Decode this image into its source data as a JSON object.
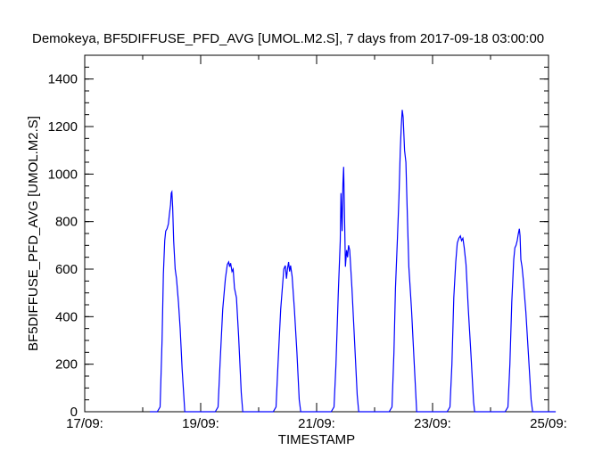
{
  "chart_data": {
    "type": "line",
    "title": "Demokeya, BF5DIFFUSE_PFD_AVG [UMOL.M2.S], 7 days from  2017-09-18 03:00:00",
    "xlabel": "TIMESTAMP",
    "ylabel": "BF5DIFFUSE_PFD_AVG [UMOL.M2.S]",
    "xlim": [
      "2017-09-17",
      "2017-09-25"
    ],
    "ylim": [
      0,
      1500
    ],
    "x_ticks": [
      {
        "date": "2017-09-17",
        "label": "17/09:"
      },
      {
        "date": "2017-09-19",
        "label": "19/09:"
      },
      {
        "date": "2017-09-21",
        "label": "21/09:"
      },
      {
        "date": "2017-09-23",
        "label": "23/09:"
      },
      {
        "date": "2017-09-25",
        "label": "25/09:"
      }
    ],
    "y_ticks": [
      {
        "value": 0,
        "label": "0"
      },
      {
        "value": 200,
        "label": "200"
      },
      {
        "value": 400,
        "label": "400"
      },
      {
        "value": 600,
        "label": "600"
      },
      {
        "value": 800,
        "label": "800"
      },
      {
        "value": 1000,
        "label": "1000"
      },
      {
        "value": 1200,
        "label": "1200"
      },
      {
        "value": 1400,
        "label": "1400"
      }
    ],
    "grid": false,
    "line_color": "#0000ff",
    "series": [
      {
        "points": [
          [
            "2017-09-18 03:00",
            0
          ],
          [
            "2017-09-18 06:00",
            0
          ],
          [
            "2017-09-18 07:12",
            20
          ],
          [
            "2017-09-18 08:00",
            300
          ],
          [
            "2017-09-18 08:34",
            580
          ],
          [
            "2017-09-18 09:07",
            720
          ],
          [
            "2017-09-18 09:31",
            760
          ],
          [
            "2017-09-18 10:05",
            770
          ],
          [
            "2017-09-18 10:38",
            790
          ],
          [
            "2017-09-18 11:02",
            830
          ],
          [
            "2017-09-18 11:31",
            870
          ],
          [
            "2017-09-18 11:50",
            920
          ],
          [
            "2017-09-18 12:05",
            925
          ],
          [
            "2017-09-18 12:24",
            860
          ],
          [
            "2017-09-18 12:48",
            720
          ],
          [
            "2017-09-18 13:26",
            600
          ],
          [
            "2017-09-18 14:00",
            560
          ],
          [
            "2017-09-18 14:48",
            460
          ],
          [
            "2017-09-18 15:31",
            350
          ],
          [
            "2017-09-18 16:19",
            180
          ],
          [
            "2017-09-18 17:26",
            0
          ],
          [
            "2017-09-19 06:00",
            0
          ],
          [
            "2017-09-19 07:12",
            20
          ],
          [
            "2017-09-19 08:00",
            200
          ],
          [
            "2017-09-19 09:07",
            430
          ],
          [
            "2017-09-19 10:14",
            560
          ],
          [
            "2017-09-19 11:02",
            620
          ],
          [
            "2017-09-19 11:36",
            630
          ],
          [
            "2017-09-19 12:00",
            610
          ],
          [
            "2017-09-19 12:24",
            625
          ],
          [
            "2017-09-19 12:58",
            590
          ],
          [
            "2017-09-19 13:26",
            600
          ],
          [
            "2017-09-19 14:00",
            520
          ],
          [
            "2017-09-19 14:48",
            480
          ],
          [
            "2017-09-19 15:41",
            320
          ],
          [
            "2017-09-19 16:48",
            80
          ],
          [
            "2017-09-19 17:26",
            0
          ],
          [
            "2017-09-20 06:00",
            0
          ],
          [
            "2017-09-20 07:12",
            20
          ],
          [
            "2017-09-20 08:00",
            200
          ],
          [
            "2017-09-20 09:07",
            430
          ],
          [
            "2017-09-20 10:24",
            600
          ],
          [
            "2017-09-20 11:02",
            615
          ],
          [
            "2017-09-20 11:31",
            560
          ],
          [
            "2017-09-20 11:55",
            600
          ],
          [
            "2017-09-20 12:24",
            630
          ],
          [
            "2017-09-20 12:48",
            590
          ],
          [
            "2017-09-20 13:12",
            615
          ],
          [
            "2017-09-20 13:50",
            570
          ],
          [
            "2017-09-20 14:48",
            430
          ],
          [
            "2017-09-20 15:50",
            250
          ],
          [
            "2017-09-20 16:48",
            50
          ],
          [
            "2017-09-20 17:26",
            0
          ],
          [
            "2017-09-21 06:00",
            0
          ],
          [
            "2017-09-21 07:12",
            20
          ],
          [
            "2017-09-21 08:00",
            200
          ],
          [
            "2017-09-21 08:58",
            500
          ],
          [
            "2017-09-21 09:46",
            720
          ],
          [
            "2017-09-21 10:05",
            920
          ],
          [
            "2017-09-21 10:34",
            760
          ],
          [
            "2017-09-21 10:53",
            960
          ],
          [
            "2017-09-21 11:12",
            1030
          ],
          [
            "2017-09-21 11:36",
            800
          ],
          [
            "2017-09-21 11:55",
            610
          ],
          [
            "2017-09-21 12:24",
            680
          ],
          [
            "2017-09-21 12:48",
            650
          ],
          [
            "2017-09-21 13:12",
            700
          ],
          [
            "2017-09-21 13:41",
            680
          ],
          [
            "2017-09-21 14:38",
            520
          ],
          [
            "2017-09-21 15:41",
            300
          ],
          [
            "2017-09-21 16:48",
            70
          ],
          [
            "2017-09-21 17:26",
            0
          ],
          [
            "2017-09-22 06:00",
            0
          ],
          [
            "2017-09-22 07:12",
            20
          ],
          [
            "2017-09-22 08:00",
            250
          ],
          [
            "2017-09-22 08:38",
            520
          ],
          [
            "2017-09-22 09:26",
            720
          ],
          [
            "2017-09-22 10:05",
            900
          ],
          [
            "2017-09-22 10:38",
            1100
          ],
          [
            "2017-09-22 11:02",
            1200
          ],
          [
            "2017-09-22 11:26",
            1270
          ],
          [
            "2017-09-22 11:50",
            1240
          ],
          [
            "2017-09-22 12:24",
            1100
          ],
          [
            "2017-09-22 12:58",
            1050
          ],
          [
            "2017-09-22 13:26",
            870
          ],
          [
            "2017-09-22 14:10",
            610
          ],
          [
            "2017-09-22 15:17",
            430
          ],
          [
            "2017-09-22 16:19",
            220
          ],
          [
            "2017-09-22 17:26",
            0
          ],
          [
            "2017-09-23 06:00",
            0
          ],
          [
            "2017-09-23 07:12",
            20
          ],
          [
            "2017-09-23 08:00",
            200
          ],
          [
            "2017-09-23 08:48",
            480
          ],
          [
            "2017-09-23 09:36",
            630
          ],
          [
            "2017-09-23 10:14",
            710
          ],
          [
            "2017-09-23 10:53",
            730
          ],
          [
            "2017-09-23 11:31",
            740
          ],
          [
            "2017-09-23 12:00",
            720
          ],
          [
            "2017-09-23 12:34",
            730
          ],
          [
            "2017-09-23 13:07",
            690
          ],
          [
            "2017-09-23 13:50",
            620
          ],
          [
            "2017-09-23 14:48",
            430
          ],
          [
            "2017-09-23 15:50",
            250
          ],
          [
            "2017-09-23 16:58",
            40
          ],
          [
            "2017-09-23 17:26",
            0
          ],
          [
            "2017-09-24 06:00",
            0
          ],
          [
            "2017-09-24 07:12",
            20
          ],
          [
            "2017-09-24 08:00",
            200
          ],
          [
            "2017-09-24 08:48",
            460
          ],
          [
            "2017-09-24 09:36",
            640
          ],
          [
            "2017-09-24 10:05",
            690
          ],
          [
            "2017-09-24 10:34",
            700
          ],
          [
            "2017-09-24 11:02",
            720
          ],
          [
            "2017-09-24 11:31",
            750
          ],
          [
            "2017-09-24 11:55",
            770
          ],
          [
            "2017-09-24 12:14",
            740
          ],
          [
            "2017-09-24 12:34",
            640
          ],
          [
            "2017-09-24 13:02",
            610
          ],
          [
            "2017-09-24 13:31",
            560
          ],
          [
            "2017-09-24 14:38",
            420
          ],
          [
            "2017-09-24 15:41",
            240
          ],
          [
            "2017-09-24 16:48",
            50
          ],
          [
            "2017-09-24 17:26",
            0
          ],
          [
            "2017-09-25 03:00",
            0
          ]
        ]
      }
    ]
  }
}
